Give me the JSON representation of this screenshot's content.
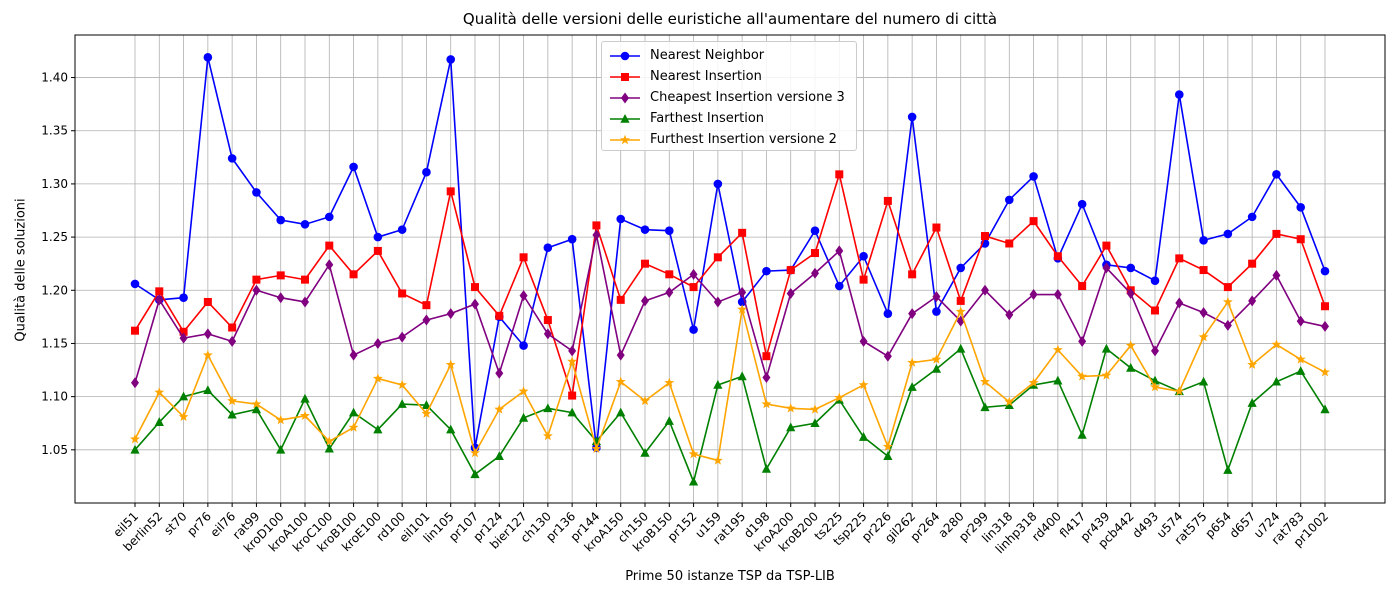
{
  "chart_data": {
    "type": "line",
    "title": "Qualità delle versioni delle euristiche all'aumentare del numero di città",
    "xlabel": "Prime 50 istanze TSP da TSP-LIB",
    "ylabel": "Qualità delle soluzioni",
    "ylim": [
      1.0,
      1.44
    ],
    "yticks": [
      "1.05",
      "1.10",
      "1.15",
      "1.20",
      "1.25",
      "1.30",
      "1.35",
      "1.40"
    ],
    "grid": true,
    "legend_position": "top-center",
    "categories": [
      "eil51",
      "berlin52",
      "st70",
      "pr76",
      "eil76",
      "rat99",
      "kroD100",
      "kroA100",
      "kroC100",
      "kroB100",
      "kroE100",
      "rd100",
      "eil101",
      "lin105",
      "pr107",
      "pr124",
      "bier127",
      "ch130",
      "pr136",
      "pr144",
      "kroA150",
      "ch150",
      "kroB150",
      "pr152",
      "u159",
      "rat195",
      "d198",
      "kroA200",
      "kroB200",
      "ts225",
      "tsp225",
      "pr226",
      "gil262",
      "pr264",
      "a280",
      "pr299",
      "lin318",
      "linhp318",
      "rd400",
      "fl417",
      "pr439",
      "pcb442",
      "d493",
      "u574",
      "rat575",
      "p654",
      "d657",
      "u724",
      "rat783",
      "pr1002"
    ],
    "series": [
      {
        "name": "Nearest Neighbor",
        "color": "#0000ff",
        "marker": "circle",
        "values": [
          1.206,
          1.191,
          1.193,
          1.419,
          1.324,
          1.292,
          1.266,
          1.262,
          1.269,
          1.316,
          1.25,
          1.257,
          1.311,
          1.417,
          1.052,
          1.175,
          1.148,
          1.24,
          1.248,
          1.052,
          1.267,
          1.257,
          1.256,
          1.163,
          1.3,
          1.189,
          1.218,
          1.219,
          1.256,
          1.204,
          1.232,
          1.178,
          1.363,
          1.18,
          1.221,
          1.244,
          1.285,
          1.307,
          1.23,
          1.281,
          1.224,
          1.221,
          1.209,
          1.384,
          1.247,
          1.253,
          1.269,
          1.309,
          1.278,
          1.218
        ]
      },
      {
        "name": "Nearest Insertion",
        "color": "#ff0000",
        "marker": "square",
        "values": [
          1.162,
          1.199,
          1.161,
          1.189,
          1.165,
          1.21,
          1.214,
          1.21,
          1.242,
          1.215,
          1.237,
          1.197,
          1.186,
          1.293,
          1.203,
          1.176,
          1.231,
          1.172,
          1.101,
          1.261,
          1.191,
          1.225,
          1.215,
          1.203,
          1.231,
          1.254,
          1.138,
          1.219,
          1.235,
          1.309,
          1.21,
          1.284,
          1.215,
          1.259,
          1.19,
          1.251,
          1.244,
          1.265,
          1.232,
          1.204,
          1.242,
          1.2,
          1.181,
          1.23,
          1.219,
          1.203,
          1.225,
          1.253,
          1.248,
          1.185
        ]
      },
      {
        "name": "Cheapest Insertion versione 3",
        "color": "#800080",
        "marker": "diamond",
        "values": [
          1.113,
          1.191,
          1.155,
          1.159,
          1.152,
          1.2,
          1.193,
          1.189,
          1.224,
          1.139,
          1.15,
          1.156,
          1.172,
          1.178,
          1.187,
          1.122,
          1.195,
          1.159,
          1.143,
          1.252,
          1.139,
          1.19,
          1.198,
          1.215,
          1.189,
          1.198,
          1.118,
          1.197,
          1.216,
          1.237,
          1.152,
          1.138,
          1.178,
          1.194,
          1.171,
          1.2,
          1.177,
          1.196,
          1.196,
          1.152,
          1.221,
          1.197,
          1.143,
          1.188,
          1.179,
          1.167,
          1.19,
          1.214,
          1.171,
          1.166
        ]
      },
      {
        "name": "Farthest Insertion",
        "color": "#008000",
        "marker": "triangle",
        "values": [
          1.05,
          1.076,
          1.1,
          1.106,
          1.083,
          1.088,
          1.05,
          1.098,
          1.051,
          1.085,
          1.069,
          1.093,
          1.092,
          1.069,
          1.027,
          1.044,
          1.08,
          1.089,
          1.085,
          1.058,
          1.085,
          1.047,
          1.077,
          1.02,
          1.111,
          1.119,
          1.032,
          1.071,
          1.075,
          1.097,
          1.062,
          1.044,
          1.109,
          1.126,
          1.145,
          1.09,
          1.092,
          1.111,
          1.115,
          1.064,
          1.145,
          1.127,
          1.115,
          1.105,
          1.114,
          1.031,
          1.094,
          1.114,
          1.124,
          1.088
        ]
      },
      {
        "name": "Furthest Insertion versione 2",
        "color": "#ffa500",
        "marker": "star",
        "values": [
          1.06,
          1.104,
          1.081,
          1.139,
          1.096,
          1.093,
          1.078,
          1.082,
          1.058,
          1.071,
          1.117,
          1.111,
          1.084,
          1.13,
          1.047,
          1.088,
          1.105,
          1.063,
          1.133,
          1.051,
          1.114,
          1.096,
          1.113,
          1.046,
          1.04,
          1.182,
          1.093,
          1.089,
          1.088,
          1.099,
          1.111,
          1.053,
          1.132,
          1.135,
          1.18,
          1.114,
          1.095,
          1.113,
          1.144,
          1.119,
          1.12,
          1.148,
          1.109,
          1.105,
          1.156,
          1.189,
          1.13,
          1.149,
          1.135,
          1.123
        ]
      }
    ]
  }
}
